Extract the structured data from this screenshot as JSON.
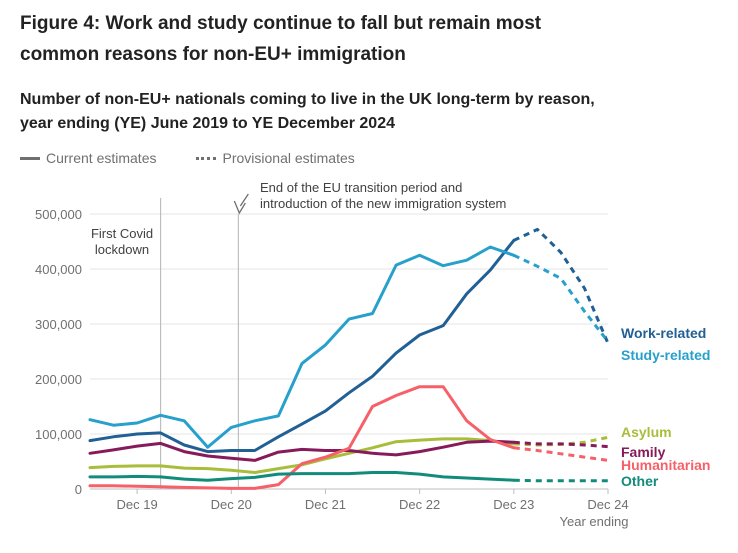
{
  "figure_title": "Figure 4: Work and study continue to fall but remain most common reasons for non-EU+ immigration",
  "chart_data": {
    "type": "line",
    "title": "Number of non-EU+ nationals coming to live in the UK long-term by reason, year ending (YE) June 2019 to YE December 2024",
    "xlabel": "Year ending",
    "ylabel": "",
    "ylim": [
      0,
      500000
    ],
    "y_ticks": [
      0,
      100000,
      200000,
      300000,
      400000,
      500000
    ],
    "y_tick_labels": [
      "0",
      "100,000",
      "200,000",
      "300,000",
      "400,000",
      "500,000"
    ],
    "x_range": [
      0,
      22
    ],
    "x_ticks": [
      {
        "x": 2,
        "label": "Dec 19"
      },
      {
        "x": 6,
        "label": "Dec 20"
      },
      {
        "x": 10,
        "label": "Dec 21"
      },
      {
        "x": 14,
        "label": "Dec 22"
      },
      {
        "x": 18,
        "label": "Dec 23"
      },
      {
        "x": 22,
        "label": "Dec 24"
      }
    ],
    "x_note": "x = months since YE June 2019, in steps of one quarter (YE Jun 2019 to YE Dec 2024)",
    "legend": {
      "current": "Current estimates",
      "provisional": "Provisional estimates"
    },
    "annotations": [
      {
        "x": 3.0,
        "text_lines": [
          "First Covid",
          "lockdown"
        ]
      },
      {
        "x": 6.3,
        "text_lines": [
          "End of the EU transition period and",
          "introduction of the new immigration system"
        ]
      }
    ],
    "series": [
      {
        "name": "Work-related",
        "color": "#206095",
        "current_x": [
          0,
          1,
          2,
          3,
          4,
          5,
          6,
          7,
          8,
          9,
          10,
          11,
          12,
          13,
          14,
          15,
          16,
          17,
          18
        ],
        "current": [
          88000,
          95000,
          100000,
          102000,
          80000,
          68000,
          70000,
          70000,
          95000,
          118000,
          142000,
          175000,
          205000,
          247000,
          280000,
          297000,
          355000,
          398000,
          452000
        ],
        "provisional_x": [
          18,
          19,
          20,
          21,
          22
        ],
        "provisional": [
          452000,
          472000,
          430000,
          365000,
          265000
        ]
      },
      {
        "name": "Study-related",
        "color": "#27a0cc",
        "current_x": [
          0,
          1,
          2,
          3,
          4,
          5,
          6,
          7,
          8,
          9,
          10,
          11,
          12,
          13,
          14,
          15,
          16,
          17,
          18
        ],
        "current": [
          126000,
          116000,
          120000,
          134000,
          124000,
          76000,
          112000,
          124000,
          133000,
          228000,
          262000,
          309000,
          319000,
          407000,
          425000,
          406000,
          416000,
          440000,
          425000
        ],
        "provisional_x": [
          18,
          19,
          20,
          21,
          22
        ],
        "provisional": [
          425000,
          405000,
          383000,
          323000,
          268000
        ]
      },
      {
        "name": "Asylum",
        "color": "#a8bd3a",
        "current_x": [
          0,
          1,
          2,
          3,
          4,
          5,
          6,
          7,
          8,
          9,
          10,
          11,
          12,
          13,
          14,
          15,
          16,
          17,
          18
        ],
        "current": [
          39000,
          41000,
          42000,
          42000,
          38000,
          37000,
          34000,
          30000,
          37000,
          44000,
          55000,
          65000,
          75000,
          86000,
          89000,
          91000,
          91000,
          88000,
          82000
        ],
        "provisional_x": [
          18,
          19,
          20,
          21,
          22
        ],
        "provisional": [
          82000,
          80000,
          81000,
          85000,
          94000
        ]
      },
      {
        "name": "Family",
        "color": "#871a5b",
        "current_x": [
          0,
          1,
          2,
          3,
          4,
          5,
          6,
          7,
          8,
          9,
          10,
          11,
          12,
          13,
          14,
          15,
          16,
          17,
          18
        ],
        "current": [
          65000,
          71000,
          78000,
          83000,
          68000,
          60000,
          56000,
          52000,
          67000,
          72000,
          70000,
          70000,
          65000,
          62000,
          68000,
          76000,
          85000,
          87000,
          85000
        ],
        "provisional_x": [
          18,
          19,
          20,
          21,
          22
        ],
        "provisional": [
          85000,
          82000,
          82000,
          80000,
          77000
        ]
      },
      {
        "name": "Humanitarian",
        "color": "#f66068",
        "current_x": [
          0,
          1,
          2,
          3,
          4,
          5,
          6,
          7,
          8,
          9,
          10,
          11,
          12,
          13,
          14,
          15,
          16,
          17,
          18
        ],
        "current": [
          6000,
          6000,
          5000,
          4000,
          3000,
          2000,
          1000,
          1000,
          8000,
          46000,
          58000,
          74000,
          150000,
          170000,
          186000,
          186000,
          124000,
          90000,
          75000
        ],
        "provisional_x": [
          18,
          19,
          20,
          21,
          22
        ],
        "provisional": [
          75000,
          70000,
          64000,
          58000,
          52000
        ]
      },
      {
        "name": "Other",
        "color": "#118c7b",
        "current_x": [
          0,
          1,
          2,
          3,
          4,
          5,
          6,
          7,
          8,
          9,
          10,
          11,
          12,
          13,
          14,
          15,
          16,
          17,
          18
        ],
        "current": [
          22000,
          22000,
          23000,
          22000,
          18000,
          16000,
          19000,
          21000,
          27000,
          28000,
          28000,
          28000,
          30000,
          30000,
          27000,
          22000,
          20000,
          18000,
          16000
        ],
        "provisional_x": [
          18,
          19,
          20,
          21,
          22
        ],
        "provisional": [
          16000,
          15000,
          15000,
          15000,
          15000
        ]
      }
    ]
  }
}
